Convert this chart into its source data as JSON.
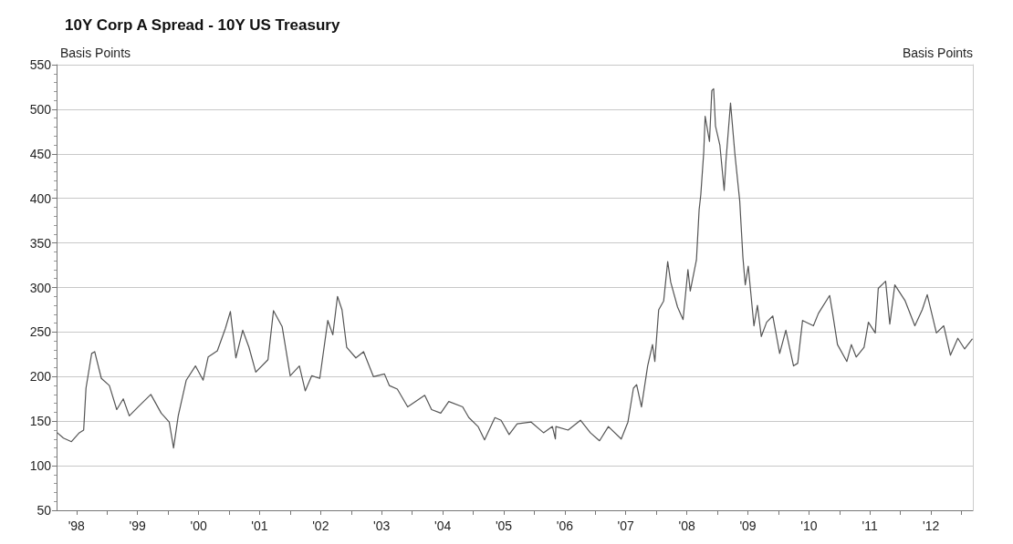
{
  "chart_data": {
    "type": "line",
    "title": "10Y Corp A Spread - 10Y US Treasury",
    "ylabel": "Basis Points",
    "y2label": "Basis Points",
    "x": [
      "1998-03-09",
      "1998-04-15",
      "1998-06-02",
      "1998-07-19",
      "1998-08-14",
      "1998-08-28",
      "1998-10-01",
      "1998-10-19",
      "1998-11-28",
      "1999-01-15",
      "1999-02-28",
      "1999-04-08",
      "1999-05-14",
      "1999-07-11",
      "1999-09-20",
      "1999-11-21",
      "2000-01-08",
      "2000-02-03",
      "2000-03-02",
      "2000-04-19",
      "2000-06-13",
      "2000-07-29",
      "2000-08-28",
      "2000-10-22",
      "2000-12-09",
      "2001-01-08",
      "2001-02-10",
      "2001-03-23",
      "2001-04-29",
      "2001-06-09",
      "2001-08-21",
      "2001-09-23",
      "2001-11-14",
      "2002-01-01",
      "2002-02-25",
      "2002-04-01",
      "2002-05-10",
      "2002-06-27",
      "2002-08-14",
      "2002-09-13",
      "2002-10-11",
      "2002-11-07",
      "2002-12-05",
      "2003-01-29",
      "2003-03-16",
      "2003-05-14",
      "2003-07-19",
      "2003-08-17",
      "2003-10-04",
      "2003-12-05",
      "2004-03-16",
      "2004-04-26",
      "2004-06-20",
      "2004-08-07",
      "2004-10-29",
      "2004-12-05",
      "2005-01-29",
      "2005-03-09",
      "2005-05-10",
      "2005-06-16",
      "2005-08-03",
      "2005-09-20",
      "2005-12-13",
      "2006-02-25",
      "2006-04-19",
      "2006-05-07",
      "2006-05-10",
      "2006-07-22",
      "2006-10-04",
      "2006-12-02",
      "2007-01-26",
      "2007-03-20",
      "2007-06-05",
      "2007-07-15",
      "2007-08-17",
      "2007-09-05",
      "2007-10-04",
      "2007-11-10",
      "2007-12-09",
      "2007-12-23",
      "2008-01-15",
      "2008-02-14",
      "2008-03-09",
      "2008-03-27",
      "2008-05-07",
      "2008-06-09",
      "2008-07-08",
      "2008-07-22",
      "2008-08-28",
      "2008-09-13",
      "2008-09-23",
      "2008-10-11",
      "2008-10-19",
      "2008-11-14",
      "2008-11-28",
      "2008-12-09",
      "2008-12-20",
      "2009-01-15",
      "2009-02-10",
      "2009-02-21",
      "2009-03-20",
      "2009-04-15",
      "2009-05-14",
      "2009-06-02",
      "2009-06-16",
      "2009-07-04",
      "2009-08-07",
      "2009-08-28",
      "2009-09-20",
      "2009-10-22",
      "2009-11-28",
      "2010-01-08",
      "2010-02-14",
      "2010-04-01",
      "2010-04-26",
      "2010-05-25",
      "2010-07-29",
      "2010-08-28",
      "2010-11-03",
      "2010-11-21",
      "2010-12-20",
      "2011-02-14",
      "2011-03-13",
      "2011-04-11",
      "2011-05-28",
      "2011-06-23",
      "2011-08-03",
      "2011-08-21",
      "2011-10-04",
      "2011-10-29",
      "2011-11-28",
      "2012-01-29",
      "2012-03-27",
      "2012-05-10",
      "2012-06-09",
      "2012-08-03",
      "2012-09-16",
      "2012-10-26",
      "2012-12-09",
      "2013-01-19",
      "2013-03-05"
    ],
    "series": [
      {
        "color": "#555555",
        "values": [
          137,
          131,
          127,
          137,
          140,
          187,
          226,
          228,
          198,
          190,
          163,
          175,
          156,
          167,
          180,
          159,
          149,
          120,
          156,
          196,
          212,
          196,
          222,
          229,
          254,
          273,
          221,
          252,
          233,
          205,
          219,
          274,
          256,
          201,
          212,
          184,
          201,
          198,
          263,
          247,
          290,
          275,
          233,
          221,
          228,
          200,
          203,
          190,
          186,
          166,
          179,
          163,
          159,
          172,
          166,
          154,
          144,
          129,
          154,
          151,
          135,
          147,
          149,
          137,
          144,
          130,
          144,
          140,
          151,
          137,
          128,
          144,
          130,
          149,
          187,
          191,
          166,
          212,
          236,
          217,
          275,
          285,
          329,
          306,
          278,
          264,
          320,
          296,
          331,
          387,
          404,
          453,
          492,
          464,
          521,
          523,
          481,
          460,
          409,
          443,
          507,
          450,
          397,
          334,
          303,
          324,
          257,
          280,
          245,
          261,
          268,
          226,
          252,
          212,
          215,
          263,
          257,
          271,
          291,
          271,
          236,
          217,
          236,
          222,
          233,
          261,
          249,
          299,
          307,
          259,
          303,
          285,
          257,
          275,
          292,
          249,
          257,
          224,
          243,
          231,
          242
        ]
      }
    ],
    "xlim": [
      "1998-03-05",
      "2013-03-09"
    ],
    "xticks": [
      {
        "value": "1998-07-02",
        "label": "'98"
      },
      {
        "value": "1999-01-01",
        "label": null
      },
      {
        "value": "1999-07-02",
        "label": "'99"
      },
      {
        "value": "2000-01-01",
        "label": null
      },
      {
        "value": "2000-07-02",
        "label": "'00"
      },
      {
        "value": "2001-01-01",
        "label": null
      },
      {
        "value": "2001-07-02",
        "label": "'01"
      },
      {
        "value": "2002-01-01",
        "label": null
      },
      {
        "value": "2002-07-02",
        "label": "'02"
      },
      {
        "value": "2003-01-01",
        "label": null
      },
      {
        "value": "2003-07-02",
        "label": "'03"
      },
      {
        "value": "2004-01-01",
        "label": null
      },
      {
        "value": "2004-07-02",
        "label": "'04"
      },
      {
        "value": "2005-01-01",
        "label": null
      },
      {
        "value": "2005-07-02",
        "label": "'05"
      },
      {
        "value": "2006-01-01",
        "label": null
      },
      {
        "value": "2006-07-02",
        "label": "'06"
      },
      {
        "value": "2007-01-01",
        "label": null
      },
      {
        "value": "2007-07-02",
        "label": "'07"
      },
      {
        "value": "2008-01-01",
        "label": null
      },
      {
        "value": "2008-07-02",
        "label": "'08"
      },
      {
        "value": "2009-01-01",
        "label": null
      },
      {
        "value": "2009-07-02",
        "label": "'09"
      },
      {
        "value": "2010-01-01",
        "label": null
      },
      {
        "value": "2010-07-02",
        "label": "'10"
      },
      {
        "value": "2011-01-01",
        "label": null
      },
      {
        "value": "2011-07-02",
        "label": "'11"
      },
      {
        "value": "2012-01-01",
        "label": null
      },
      {
        "value": "2012-07-02",
        "label": "'12"
      },
      {
        "value": "2013-01-01",
        "label": null
      }
    ],
    "ylim": [
      50,
      550
    ],
    "yticks": [
      50,
      100,
      150,
      200,
      250,
      300,
      350,
      400,
      450,
      500,
      550
    ],
    "grid": "y",
    "legend": false,
    "marker": "none",
    "line_style": "solid"
  }
}
